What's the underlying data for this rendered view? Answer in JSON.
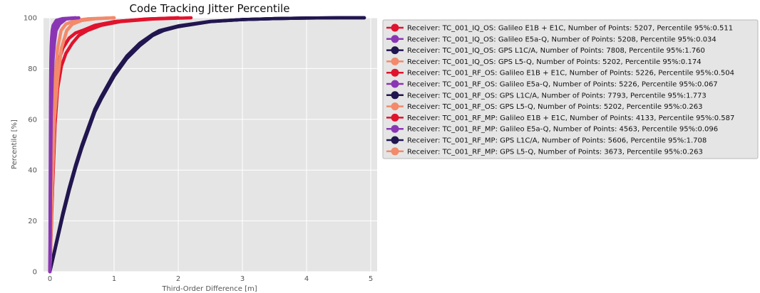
{
  "chart_data": {
    "type": "line",
    "title": "Code Tracking Jitter Percentile",
    "xlabel": "Third-Order Difference [m]",
    "ylabel": "Percentile [%]",
    "xlim": [
      -0.1,
      5.1
    ],
    "ylim": [
      0,
      100
    ],
    "x_ticks": [
      "0",
      "1",
      "2",
      "3",
      "4",
      "5"
    ],
    "y_ticks": [
      "0",
      "20",
      "40",
      "60",
      "80",
      "100"
    ],
    "grid": true,
    "legend_position": "outside-right-top",
    "series": [
      {
        "name": "Receiver: TC_001_IQ_OS: Galileo E1B + E1C, Number of Points: 5207, Percentile 95%:0.511",
        "color": "#e0132d",
        "x": [
          0,
          0.03,
          0.06,
          0.1,
          0.15,
          0.2,
          0.3,
          0.4,
          0.511,
          0.7,
          1.0,
          1.5,
          2.0
        ],
        "y": [
          0,
          35,
          62,
          76,
          84,
          88,
          92,
          94,
          95,
          97,
          98.5,
          99.5,
          100
        ]
      },
      {
        "name": "Receiver: TC_001_IQ_OS: Galileo E5a-Q, Number of Points: 5208, Percentile 95%:0.034",
        "color": "#8a36b4",
        "x": [
          0,
          0.005,
          0.01,
          0.015,
          0.02,
          0.025,
          0.034,
          0.05,
          0.1,
          0.2,
          0.4
        ],
        "y": [
          0,
          40,
          70,
          83,
          89,
          92,
          95,
          97,
          99,
          99.7,
          100
        ]
      },
      {
        "name": "Receiver: TC_001_IQ_OS: GPS L1C/A, Number of Points: 7808, Percentile 95%:1.760",
        "color": "#221650",
        "x": [
          0,
          0.1,
          0.2,
          0.3,
          0.4,
          0.5,
          0.6,
          0.7,
          0.8,
          1.0,
          1.2,
          1.4,
          1.6,
          1.76,
          2.0,
          2.5,
          3.0,
          3.5,
          4.0,
          4.5,
          4.9
        ],
        "y": [
          0,
          11,
          22,
          32,
          41,
          49,
          56,
          63,
          68,
          77,
          84,
          89,
          93,
          95,
          96.5,
          98.5,
          99.3,
          99.7,
          99.9,
          100,
          100
        ]
      },
      {
        "name": "Receiver: TC_001_IQ_OS: GPS L5-Q, Number of Points: 5202, Percentile 95%:0.174",
        "color": "#f28a6b",
        "x": [
          0,
          0.02,
          0.05,
          0.08,
          0.12,
          0.174,
          0.25,
          0.4,
          0.6,
          1.0
        ],
        "y": [
          0,
          30,
          60,
          76,
          88,
          95,
          97.5,
          99,
          99.6,
          100
        ]
      },
      {
        "name": "Receiver: TC_001_RF_OS: Galileo E1B + E1C, Number of Points: 5226, Percentile 95%:0.504",
        "color": "#e0132d",
        "x": [
          0,
          0.03,
          0.06,
          0.1,
          0.15,
          0.2,
          0.3,
          0.4,
          0.504,
          0.7,
          1.0,
          1.5,
          2.0
        ],
        "y": [
          0,
          35,
          62,
          76,
          84,
          88,
          92,
          94,
          95,
          97,
          98.5,
          99.5,
          100
        ]
      },
      {
        "name": "Receiver: TC_001_RF_OS: Galileo E5a-Q, Number of Points: 5226, Percentile 95%:0.067",
        "color": "#8a36b4",
        "x": [
          0,
          0.01,
          0.02,
          0.03,
          0.045,
          0.067,
          0.1,
          0.2,
          0.4
        ],
        "y": [
          0,
          40,
          68,
          82,
          90,
          95,
          97.5,
          99.5,
          100
        ]
      },
      {
        "name": "Receiver: TC_001_RF_OS: GPS L1C/A, Number of Points: 7793, Percentile 95%:1.773",
        "color": "#221650",
        "x": [
          0,
          0.1,
          0.2,
          0.3,
          0.4,
          0.5,
          0.6,
          0.7,
          0.8,
          1.0,
          1.2,
          1.4,
          1.6,
          1.773,
          2.0,
          2.5,
          3.0,
          3.5,
          4.0,
          4.5,
          4.9
        ],
        "y": [
          0,
          11,
          22,
          32,
          41,
          49,
          56,
          63,
          68,
          77,
          84,
          89,
          93,
          95,
          96.5,
          98.5,
          99.3,
          99.7,
          99.9,
          100,
          100
        ]
      },
      {
        "name": "Receiver: TC_001_RF_OS: GPS L5-Q, Number of Points: 5202, Percentile 95%:0.263",
        "color": "#f28a6b",
        "x": [
          0,
          0.03,
          0.07,
          0.12,
          0.18,
          0.263,
          0.35,
          0.5,
          0.7,
          1.0
        ],
        "y": [
          0,
          30,
          60,
          76,
          88,
          95,
          97.5,
          99,
          99.6,
          100
        ]
      },
      {
        "name": "Receiver: TC_001_RF_MP: Galileo E1B + E1C, Number of Points: 4133, Percentile 95%:0.587",
        "color": "#e0132d",
        "x": [
          0,
          0.04,
          0.08,
          0.12,
          0.18,
          0.25,
          0.35,
          0.45,
          0.587,
          0.8,
          1.1,
          1.6,
          2.2
        ],
        "y": [
          0,
          32,
          58,
          72,
          81,
          86,
          90,
          93,
          95,
          97,
          98.5,
          99.5,
          100
        ]
      },
      {
        "name": "Receiver: TC_001_RF_MP: Galileo E5a-Q, Number of Points: 4563, Percentile 95%:0.096",
        "color": "#8a36b4",
        "x": [
          0,
          0.01,
          0.02,
          0.035,
          0.05,
          0.07,
          0.096,
          0.15,
          0.25,
          0.45
        ],
        "y": [
          0,
          35,
          60,
          76,
          84,
          90,
          95,
          97.5,
          99.5,
          100
        ]
      },
      {
        "name": "Receiver: TC_001_RF_MP: GPS L1C/A, Number of Points: 5606, Percentile 95%:1.708",
        "color": "#221650",
        "x": [
          0,
          0.1,
          0.2,
          0.3,
          0.4,
          0.5,
          0.6,
          0.7,
          0.8,
          1.0,
          1.2,
          1.4,
          1.6,
          1.708,
          2.0,
          2.5,
          3.0,
          3.5,
          4.0,
          4.5,
          4.9
        ],
        "y": [
          0,
          11.5,
          23,
          33,
          42,
          50,
          57,
          64,
          69,
          78,
          85,
          90,
          93.5,
          95,
          96.8,
          98.6,
          99.3,
          99.7,
          99.9,
          100,
          100
        ]
      },
      {
        "name": "Receiver: TC_001_RF_MP: GPS L5-Q, Number of Points: 3673, Percentile 95%:0.263",
        "color": "#f28a6b",
        "x": [
          0,
          0.03,
          0.07,
          0.12,
          0.18,
          0.263,
          0.35,
          0.5,
          0.7,
          1.0
        ],
        "y": [
          0,
          30,
          60,
          76,
          88,
          95,
          97.5,
          99,
          99.6,
          100
        ]
      }
    ]
  }
}
